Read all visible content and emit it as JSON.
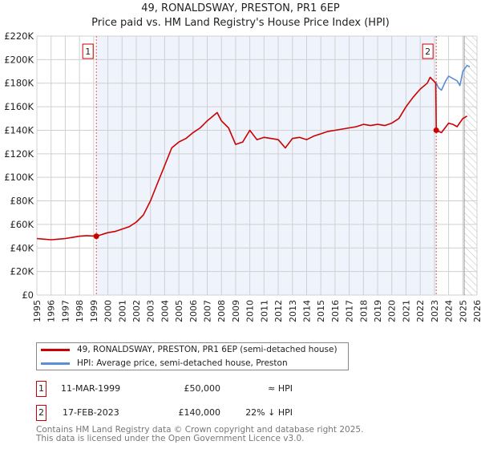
{
  "title": "49, RONALDSWAY, PRESTON, PR1 6EP",
  "subtitle": "Price paid vs. HM Land Registry's House Price Index (HPI)",
  "chart_data": {
    "type": "line",
    "title": "49, RONALDSWAY, PRESTON, PR1 6EP",
    "subtitle": "Price paid vs. HM Land Registry's House Price Index (HPI)",
    "xlim": [
      1995,
      2026
    ],
    "ylim": [
      0,
      220000
    ],
    "x_ticks": [
      "1995",
      "1996",
      "1997",
      "1998",
      "1999",
      "2000",
      "2001",
      "2002",
      "2003",
      "2004",
      "2005",
      "2006",
      "2007",
      "2008",
      "2009",
      "2010",
      "2011",
      "2012",
      "2013",
      "2014",
      "2015",
      "2016",
      "2017",
      "2018",
      "2019",
      "2020",
      "2021",
      "2022",
      "2023",
      "2024",
      "2025",
      "2026"
    ],
    "y_ticks": [
      "£0",
      "£20K",
      "£40K",
      "£60K",
      "£80K",
      "£100K",
      "£120K",
      "£140K",
      "£160K",
      "£180K",
      "£200K",
      "£220K"
    ],
    "grid": true,
    "shaded_range": [
      1999.19,
      2023.13
    ],
    "hatched_from": 2025.1,
    "series": [
      {
        "name": "49, RONALDSWAY, PRESTON, PR1 6EP (semi-detached house)",
        "color": "#cc0000",
        "x": [
          1995,
          1995.5,
          1996,
          1996.5,
          1997,
          1997.5,
          1998,
          1998.5,
          1999.19,
          2000,
          2000.5,
          2001,
          2001.5,
          2002,
          2002.5,
          2003,
          2003.5,
          2004,
          2004.5,
          2005,
          2005.5,
          2006,
          2006.5,
          2007,
          2007.7,
          2008,
          2008.5,
          2009,
          2009.5,
          2010,
          2010.5,
          2011,
          2011.5,
          2012,
          2012.5,
          2013,
          2013.5,
          2014,
          2014.5,
          2015,
          2015.5,
          2016,
          2016.5,
          2017,
          2017.5,
          2018,
          2018.5,
          2019,
          2019.5,
          2020,
          2020.5,
          2021,
          2021.5,
          2022,
          2022.5,
          2022.7,
          2023.1,
          2023.13,
          2023.5,
          2024,
          2024.3,
          2024.6,
          2025,
          2025.3
        ],
        "y": [
          48000,
          47500,
          47000,
          47500,
          48000,
          49000,
          50000,
          50500,
          50000,
          53000,
          54000,
          56000,
          58000,
          62000,
          68000,
          80000,
          95000,
          110000,
          125000,
          130000,
          133000,
          138000,
          142000,
          148000,
          155000,
          148000,
          142000,
          128000,
          130000,
          140000,
          132000,
          134000,
          133000,
          132000,
          125000,
          133000,
          134000,
          132000,
          135000,
          137000,
          139000,
          140000,
          141000,
          142000,
          143000,
          145000,
          144000,
          145000,
          144000,
          146000,
          150000,
          160000,
          168000,
          175000,
          180000,
          185000,
          180000,
          140000,
          138000,
          146000,
          145000,
          143000,
          150000,
          152000
        ]
      },
      {
        "name": "HPI: Average price, semi-detached house, Preston",
        "color": "#5b8ed6",
        "x": [
          2023.13,
          2023.3,
          2023.5,
          2023.8,
          2024,
          2024.3,
          2024.6,
          2024.8,
          2025,
          2025.3,
          2025.5
        ],
        "y": [
          180000,
          176000,
          174000,
          182000,
          186000,
          184000,
          182000,
          178000,
          190000,
          195000,
          194000
        ]
      }
    ],
    "annotations": [
      {
        "label": "1",
        "x": 1999.19,
        "y": 50000
      },
      {
        "label": "2",
        "x": 2023.13,
        "y": 140000
      }
    ]
  },
  "legend": [
    {
      "label": "49, RONALDSWAY, PRESTON, PR1 6EP (semi-detached house)",
      "color": "#cc0000"
    },
    {
      "label": "HPI: Average price, semi-detached house, Preston",
      "color": "#5b8ed6"
    }
  ],
  "transactions": [
    {
      "num": "1",
      "date": "11-MAR-1999",
      "price": "£50,000",
      "hpi": "≈ HPI"
    },
    {
      "num": "2",
      "date": "17-FEB-2023",
      "price": "£140,000",
      "hpi": "22% ↓ HPI"
    }
  ],
  "footer": {
    "line1": "Contains HM Land Registry data © Crown copyright and database right 2025.",
    "line2": "This data is licensed under the Open Government Licence v3.0."
  }
}
